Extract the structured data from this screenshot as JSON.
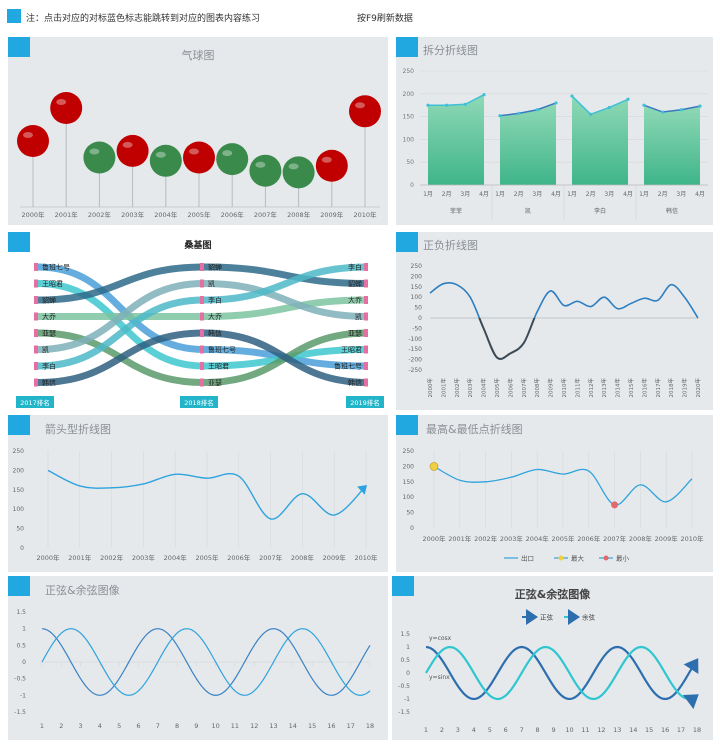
{
  "header": {
    "note": "注：点击对应的对标蓝色标志能跳转到对应的图表内容练习",
    "refresh": "按F9刷新数据"
  },
  "chart_data": [
    {
      "id": "balloon",
      "type": "scatter",
      "title": "气球图",
      "categories": [
        "2000年",
        "2001年",
        "2002年",
        "2003年",
        "2004年",
        "2005年",
        "2006年",
        "2007年",
        "2008年",
        "2009年",
        "2010年"
      ],
      "values": [
        200,
        300,
        150,
        170,
        140,
        150,
        145,
        110,
        105,
        125,
        290
      ],
      "colors": [
        "#c00000",
        "#c00000",
        "#3a8a4c",
        "#c00000",
        "#3a8a4c",
        "#c00000",
        "#3a8a4c",
        "#3a8a4c",
        "#3a8a4c",
        "#c00000",
        "#c00000"
      ]
    },
    {
      "id": "split",
      "type": "area",
      "title": "拆分折线图",
      "groups": [
        "菲菲",
        "凯",
        "李白",
        "韩信"
      ],
      "months": [
        "1月",
        "2月",
        "3月",
        "4月"
      ],
      "series": [
        {
          "values": [
            175,
            175,
            177,
            198
          ]
        },
        {
          "values": [
            152,
            157,
            165,
            180
          ]
        },
        {
          "values": [
            195,
            155,
            170,
            188
          ]
        },
        {
          "values": [
            175,
            160,
            165,
            173
          ]
        }
      ],
      "ylim": [
        0,
        250
      ],
      "yticks": [
        0,
        50,
        100,
        150,
        200,
        250
      ]
    },
    {
      "id": "sankey",
      "type": "line",
      "title": "桑基图",
      "columns": [
        "2017排名",
        "2018排名",
        "2019排名"
      ],
      "ranks": [
        [
          "鲁班七号",
          "王昭君",
          "貂蝉",
          "大乔",
          "亚瑟",
          "凯",
          "李白",
          "韩信"
        ],
        [
          "貂蝉",
          "凯",
          "李白",
          "大乔",
          "韩信",
          "鲁班七号",
          "王昭君",
          "亚瑟"
        ],
        [
          "李白",
          "貂蝉",
          "大乔",
          "凯",
          "亚瑟",
          "王昭君",
          "鲁班七号",
          "韩信"
        ]
      ],
      "colors": [
        "#4a9fd8",
        "#3ec7cf",
        "#2d6a8a",
        "#7cc3a0",
        "#5a9a6a",
        "#7fb0b8",
        "#4db8c8",
        "#2e5f80"
      ]
    },
    {
      "id": "posneg",
      "type": "line",
      "title": "正负折线图",
      "categories": [
        "2000年",
        "2001年",
        "2002年",
        "2003年",
        "2004年",
        "2005年",
        "2006年",
        "2007年",
        "2008年",
        "2009年",
        "2010年",
        "2011年",
        "2012年",
        "2013年",
        "2014年",
        "2015年",
        "2016年",
        "2017年",
        "2018年",
        "2019年",
        "2020年"
      ],
      "values": [
        120,
        165,
        160,
        100,
        -50,
        -190,
        -170,
        -120,
        30,
        130,
        60,
        80,
        55,
        100,
        45,
        70,
        95,
        85,
        160,
        100,
        0
      ],
      "ylim": [
        -250,
        250
      ],
      "yticks": [
        250,
        200,
        150,
        100,
        50,
        0,
        -50,
        -100,
        -150,
        -200,
        -250
      ]
    },
    {
      "id": "arrow",
      "type": "line",
      "title": "箭头型折线图",
      "categories": [
        "2000年",
        "2001年",
        "2002年",
        "2003年",
        "2004年",
        "2005年",
        "2006年",
        "2007年",
        "2008年",
        "2009年",
        "2010年"
      ],
      "values": [
        200,
        160,
        155,
        165,
        190,
        180,
        185,
        75,
        140,
        85,
        160
      ],
      "ylim": [
        0,
        250
      ],
      "yticks": [
        0,
        50,
        100,
        150,
        200,
        250
      ]
    },
    {
      "id": "maxmin",
      "type": "line",
      "title": "最高&最低点折线图",
      "categories": [
        "2000年",
        "2001年",
        "2002年",
        "2003年",
        "2004年",
        "2005年",
        "2006年",
        "2007年",
        "2008年",
        "2009年",
        "2010年"
      ],
      "values": [
        200,
        155,
        150,
        165,
        190,
        175,
        185,
        75,
        140,
        85,
        160
      ],
      "ylim": [
        0,
        250
      ],
      "yticks": [
        0,
        50,
        100,
        150,
        200,
        250
      ],
      "legend": [
        "出口",
        "最大",
        "最小"
      ]
    },
    {
      "id": "sincos1",
      "type": "line",
      "title": "正弦&余弦图像",
      "x": [
        1,
        2,
        3,
        4,
        5,
        6,
        7,
        8,
        9,
        10,
        11,
        12,
        13,
        14,
        15,
        16,
        17,
        18
      ],
      "ylim": [
        -1.5,
        1.5
      ],
      "yticks": [
        1.5,
        1,
        0.5,
        0,
        -0.5,
        -1,
        -1.5
      ]
    },
    {
      "id": "sincos2",
      "type": "line",
      "title": "正弦&余弦图像",
      "x": [
        1,
        2,
        3,
        4,
        5,
        6,
        7,
        8,
        9,
        10,
        11,
        12,
        13,
        14,
        15,
        16,
        17,
        18
      ],
      "ylim": [
        -1.5,
        1.5
      ],
      "yticks": [
        1.5,
        1,
        0.5,
        0,
        -0.5,
        -1,
        -1.5
      ],
      "legend": [
        "正弦",
        "余弦"
      ],
      "labels": [
        "y=cosx",
        "y=sinx"
      ]
    }
  ]
}
